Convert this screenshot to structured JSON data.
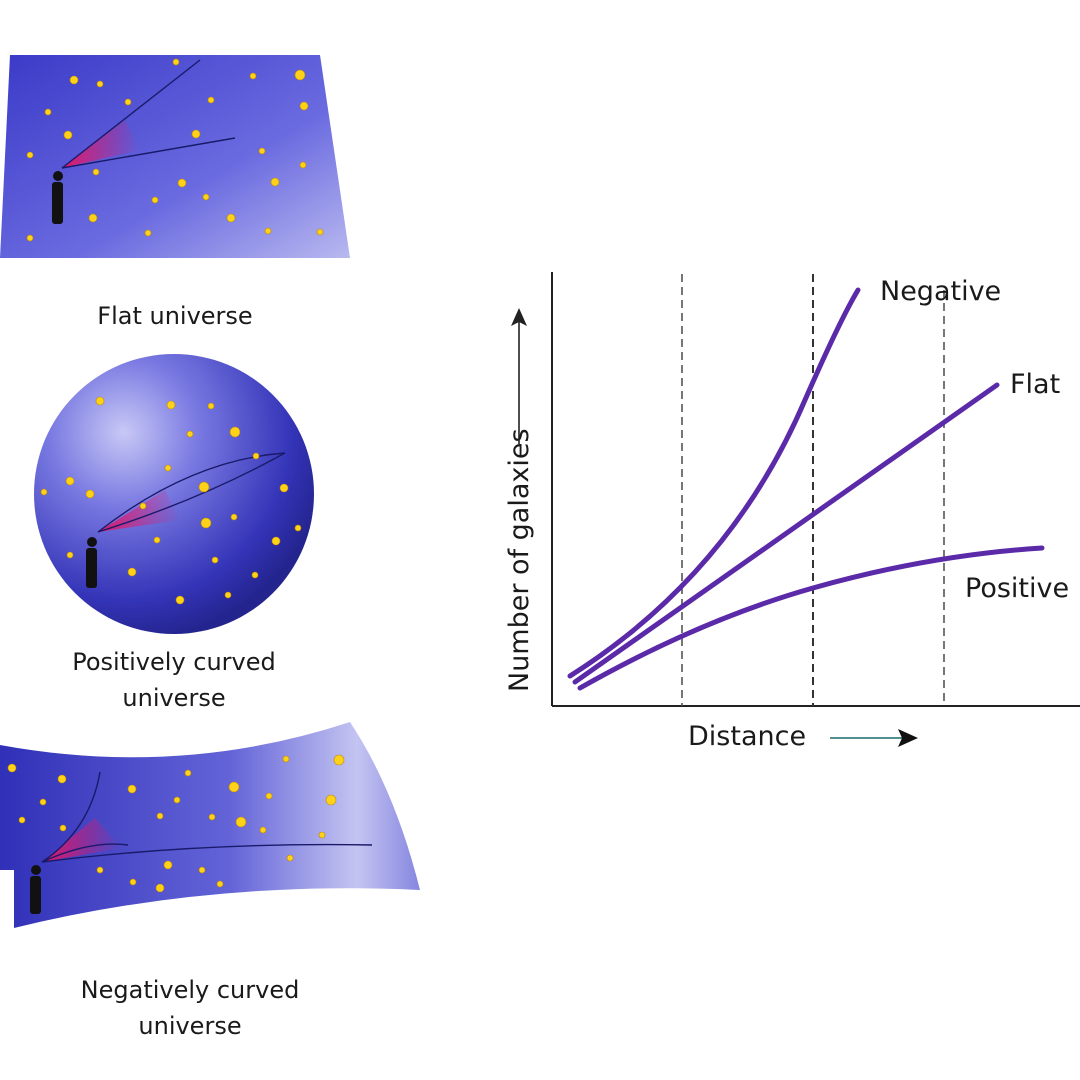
{
  "panels": {
    "flat": {
      "caption_line1": "Flat universe",
      "caption_line2": ""
    },
    "positive": {
      "caption_line1": "Positively curved",
      "caption_line2": "universe"
    },
    "negative": {
      "caption_line1": "Negatively curved",
      "caption_line2": "universe"
    }
  },
  "graph": {
    "ylabel": "Number of galaxies",
    "xlabel": "Distance",
    "curves": [
      {
        "label": "Negative",
        "color": "#5b2aa8"
      },
      {
        "label": "Flat",
        "color": "#5b2aa8"
      },
      {
        "label": "Positive",
        "color": "#5b2aa8"
      }
    ]
  },
  "colors": {
    "surface": "#5f5fd8",
    "surface_light": "#b4b4ee",
    "star": "#ffd21a",
    "cone": "#d0206e",
    "axis": "#222222",
    "dashed": "#555555"
  }
}
